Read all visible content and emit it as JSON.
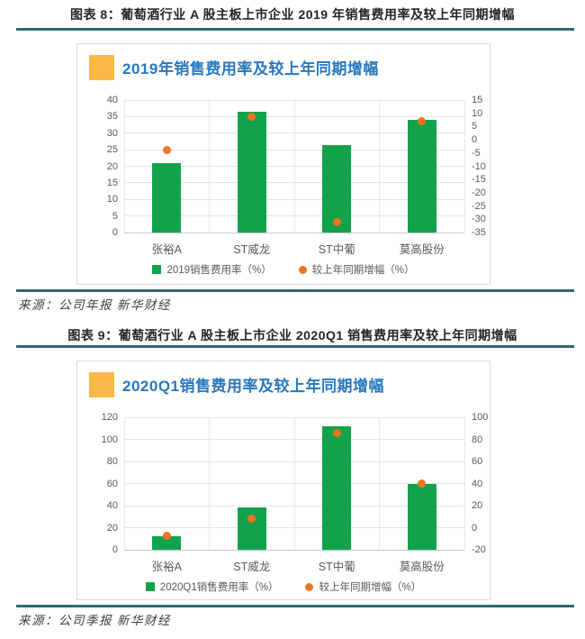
{
  "colors": {
    "rule_teal": "#2E6A70",
    "title_blue": "#2878BE",
    "header_square_orange": "#FBB848",
    "bar_green": "#12A24C",
    "dot_orange": "#EE7420",
    "axis_text_gray": "#595959",
    "caption_text": "#242424"
  },
  "figures": [
    {
      "caption": "图表 8：葡萄酒行业 A 股主板上市企业 2019 年销售费用率及较上年同期增幅",
      "source": "来源：公司年报  新华财经"
    },
    {
      "caption": "图表 9：葡萄酒行业 A 股主板上市企业 2020Q1 销售费用率及较上年同期增幅",
      "source": "来源：公司季报  新华财经"
    }
  ],
  "chart_data": [
    {
      "type": "bar",
      "title": "2019年销售费用率及较上年同期增幅",
      "categories": [
        "张裕A",
        "ST威龙",
        "ST中葡",
        "莫高股份"
      ],
      "series": [
        {
          "name": "2019销售费用率（%）",
          "type": "bar",
          "axis": "left",
          "values": [
            21,
            36.5,
            26.5,
            34
          ],
          "color": "#12A24C"
        },
        {
          "name": "较上年同期增幅（%）",
          "type": "scatter",
          "axis": "right",
          "values": [
            -4,
            8.7,
            -31,
            7
          ],
          "color": "#EE7420"
        }
      ],
      "left_axis": {
        "min": 0,
        "max": 40,
        "step": 5,
        "ticks": [
          40,
          35,
          30,
          25,
          20,
          15,
          10,
          5,
          0
        ]
      },
      "right_axis": {
        "min": -35,
        "max": 15,
        "step": 5,
        "ticks": [
          15,
          10,
          5,
          0,
          -5,
          -10,
          -15,
          -20,
          -25,
          -30,
          -35
        ]
      },
      "grid": true,
      "legend_position": "bottom"
    },
    {
      "type": "bar",
      "title": "2020Q1销售费用率及较上年同期增幅",
      "categories": [
        "张裕A",
        "ST威龙",
        "ST中葡",
        "莫高股份"
      ],
      "series": [
        {
          "name": "2020Q1销售费用率（%）",
          "type": "bar",
          "axis": "left",
          "values": [
            12,
            38,
            111.5,
            59.5
          ],
          "color": "#12A24C"
        },
        {
          "name": "较上年同期增幅（%）",
          "type": "scatter",
          "axis": "right",
          "values": [
            -7,
            8.5,
            86,
            40
          ],
          "color": "#EE7420"
        }
      ],
      "left_axis": {
        "min": 0,
        "max": 120,
        "step": 20,
        "ticks": [
          120,
          100,
          80,
          60,
          40,
          20,
          0
        ]
      },
      "right_axis": {
        "min": -20,
        "max": 100,
        "step": 20,
        "ticks": [
          100,
          80,
          60,
          40,
          20,
          0,
          -20
        ]
      },
      "grid": true,
      "legend_position": "bottom"
    }
  ]
}
